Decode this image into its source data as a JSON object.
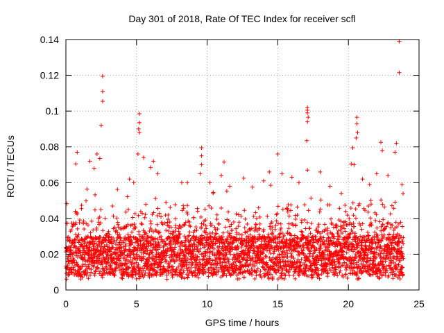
{
  "chart_data": {
    "type": "scatter",
    "title": "Day 301 of 2018, Rate Of TEC Index for receiver scfl",
    "xlabel": "GPS time / hours",
    "ylabel": "ROTI / TECUs",
    "xlim": [
      0,
      25
    ],
    "ylim": [
      0,
      0.14
    ],
    "xticks": [
      "0",
      "5",
      "10",
      "15",
      "20",
      "25"
    ],
    "xtick_values": [
      0,
      5,
      10,
      15,
      20,
      25
    ],
    "yticks": [
      "0",
      "0.02",
      "0.04",
      "0.06",
      "0.08",
      "0.1",
      "0.12",
      "0.14"
    ],
    "ytick_values": [
      0,
      0.02,
      0.04,
      0.06,
      0.08,
      0.1,
      0.12,
      0.14
    ],
    "grid": true,
    "marker": "+",
    "series_color": "#ff0000",
    "dense_band": {
      "x_range": [
        0,
        23.9
      ],
      "typical_range": [
        0.005,
        0.04
      ]
    },
    "points": [
      [
        2.6,
        0.1195
      ],
      [
        2.6,
        0.111
      ],
      [
        2.6,
        0.1055
      ],
      [
        2.5,
        0.092
      ],
      [
        5.2,
        0.0985
      ],
      [
        5.2,
        0.0935
      ],
      [
        5.15,
        0.09
      ],
      [
        5.2,
        0.088
      ],
      [
        5.1,
        0.076
      ],
      [
        9.6,
        0.0795
      ],
      [
        9.6,
        0.075
      ],
      [
        9.6,
        0.07
      ],
      [
        9.5,
        0.065
      ],
      [
        17.1,
        0.102
      ],
      [
        17.1,
        0.1005
      ],
      [
        17.1,
        0.099
      ],
      [
        17.15,
        0.0965
      ],
      [
        17.1,
        0.094
      ],
      [
        17.05,
        0.0835
      ],
      [
        17.1,
        0.067
      ],
      [
        20.6,
        0.0965
      ],
      [
        20.6,
        0.093
      ],
      [
        20.65,
        0.088
      ],
      [
        20.55,
        0.085
      ],
      [
        20.3,
        0.0795
      ],
      [
        20.2,
        0.0705
      ],
      [
        20.4,
        0.07
      ],
      [
        23.6,
        0.139
      ],
      [
        23.6,
        0.1215
      ],
      [
        22.3,
        0.0825
      ],
      [
        22.4,
        0.078
      ],
      [
        23.4,
        0.082
      ],
      [
        23.3,
        0.077
      ],
      [
        0.8,
        0.077
      ],
      [
        0.7,
        0.0705
      ],
      [
        2.2,
        0.076
      ],
      [
        2.4,
        0.0735
      ],
      [
        1.7,
        0.072
      ],
      [
        2.0,
        0.068
      ],
      [
        6.2,
        0.072
      ],
      [
        6.0,
        0.0685
      ],
      [
        6.5,
        0.065
      ],
      [
        5.5,
        0.074
      ],
      [
        4.8,
        0.06
      ],
      [
        4.5,
        0.062
      ],
      [
        8.2,
        0.06
      ],
      [
        8.6,
        0.06
      ],
      [
        11.2,
        0.0715
      ],
      [
        11.0,
        0.064
      ],
      [
        10.2,
        0.06
      ],
      [
        11.6,
        0.058
      ],
      [
        12.6,
        0.0625
      ],
      [
        13.2,
        0.0575
      ],
      [
        14.0,
        0.061
      ],
      [
        14.4,
        0.066
      ],
      [
        14.5,
        0.0585
      ],
      [
        15.0,
        0.076
      ],
      [
        15.3,
        0.065
      ],
      [
        16.0,
        0.063
      ],
      [
        16.5,
        0.06
      ],
      [
        18.0,
        0.066
      ],
      [
        18.7,
        0.058
      ],
      [
        19.5,
        0.054
      ],
      [
        21.0,
        0.062
      ],
      [
        21.5,
        0.059
      ],
      [
        22.0,
        0.065
      ],
      [
        22.8,
        0.064
      ],
      [
        23.8,
        0.059
      ]
    ]
  }
}
